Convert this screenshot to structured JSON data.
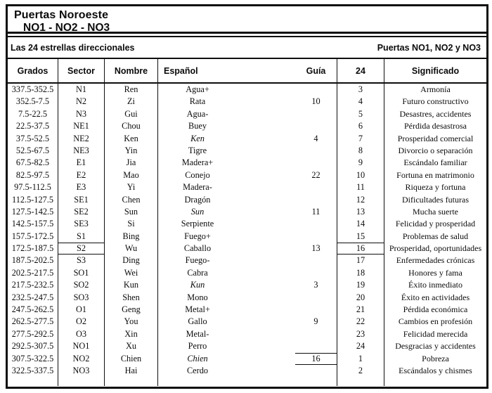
{
  "title": {
    "line1": "Puertas Noroeste",
    "line2": "NO1 - NO2 - NO3"
  },
  "band": {
    "left": "Las 24 estrellas direccionales",
    "right": "Puertas NO1, NO2 y NO3"
  },
  "table": {
    "columns": {
      "grados": "Grados",
      "sector": "Sector",
      "nombre": "Nombre",
      "espanol": "Español",
      "guia": "Guía",
      "n24": "24",
      "significado": "Significado"
    },
    "rows": [
      {
        "grados": "337.5-352.5",
        "sector": "N1",
        "nombre": "Ren",
        "espanol": "Agua+",
        "guia": "",
        "n24": "3",
        "significado": "Armonía"
      },
      {
        "grados": "352.5-7.5",
        "sector": "N2",
        "nombre": "Zi",
        "espanol": "Rata",
        "guia": "10",
        "n24": "4",
        "significado": "Futuro constructivo"
      },
      {
        "grados": "7.5-22.5",
        "sector": "N3",
        "nombre": "Gui",
        "espanol": "Agua-",
        "guia": "",
        "n24": "5",
        "significado": "Desastres, accidentes"
      },
      {
        "grados": "22.5-37.5",
        "sector": "NE1",
        "nombre": "Chou",
        "espanol": "Buey",
        "guia": "",
        "n24": "6",
        "significado": "Pérdida desastrosa"
      },
      {
        "grados": "37.5-52.5",
        "sector": "NE2",
        "nombre": "Ken",
        "espanol": "Ken",
        "espanol_italic": true,
        "guia": "4",
        "n24": "7",
        "significado": "Prosperidad comercial"
      },
      {
        "grados": "52.5-67.5",
        "sector": "NE3",
        "nombre": "Yin",
        "espanol": "Tigre",
        "guia": "",
        "n24": "8",
        "significado": "Divorcio o separación"
      },
      {
        "grados": "67.5-82.5",
        "sector": "E1",
        "nombre": "Jia",
        "espanol": "Madera+",
        "guia": "",
        "n24": "9",
        "significado": "Escándalo familiar"
      },
      {
        "grados": "82.5-97.5",
        "sector": "E2",
        "nombre": "Mao",
        "espanol": "Conejo",
        "guia": "22",
        "n24": "10",
        "significado": "Fortuna en matrimonio"
      },
      {
        "grados": "97.5-112.5",
        "sector": "E3",
        "nombre": "Yi",
        "espanol": "Madera-",
        "guia": "",
        "n24": "11",
        "significado": "Riqueza y fortuna"
      },
      {
        "grados": "112.5-127.5",
        "sector": "SE1",
        "nombre": "Chen",
        "espanol": "Dragón",
        "guia": "",
        "n24": "12",
        "significado": "Dificultades futuras"
      },
      {
        "grados": "127.5-142.5",
        "sector": "SE2",
        "nombre": "Sun",
        "espanol": "Sun",
        "espanol_italic": true,
        "guia": "11",
        "n24": "13",
        "significado": "Mucha suerte"
      },
      {
        "grados": "142.5-157.5",
        "sector": "SE3",
        "nombre": "Si",
        "espanol": "Serpiente",
        "guia": "",
        "n24": "14",
        "significado": "Felicidad y prosperidad"
      },
      {
        "grados": "157.5-172.5",
        "sector": "S1",
        "nombre": "Bing",
        "espanol": "Fuego+",
        "guia": "",
        "n24": "15",
        "significado": "Problemas de salud"
      },
      {
        "grados": "172.5-187.5",
        "sector": "S2",
        "sector_boxed": true,
        "nombre": "Wu",
        "espanol": "Caballo",
        "guia": "13",
        "n24": "16",
        "n24_boxed": true,
        "significado": "Prosperidad, oportunidades"
      },
      {
        "grados": "187.5-202.5",
        "sector": "S3",
        "nombre": "Ding",
        "espanol": "Fuego-",
        "guia": "",
        "n24": "17",
        "significado": "Enfermedades crónicas"
      },
      {
        "grados": "202.5-217.5",
        "sector": "SO1",
        "nombre": "Wei",
        "espanol": "Cabra",
        "guia": "",
        "n24": "18",
        "significado": "Honores y fama"
      },
      {
        "grados": "217.5-232.5",
        "sector": "SO2",
        "nombre": "Kun",
        "espanol": "Kun",
        "espanol_italic": true,
        "guia": "3",
        "n24": "19",
        "significado": "Éxito inmediato"
      },
      {
        "grados": "232.5-247.5",
        "sector": "SO3",
        "nombre": "Shen",
        "espanol": "Mono",
        "guia": "",
        "n24": "20",
        "significado": "Éxito en actividades"
      },
      {
        "grados": "247.5-262.5",
        "sector": "O1",
        "nombre": "Geng",
        "espanol": "Metal+",
        "guia": "",
        "n24": "21",
        "significado": "Pérdida económica"
      },
      {
        "grados": "262.5-277.5",
        "sector": "O2",
        "nombre": "You",
        "espanol": "Gallo",
        "guia": "9",
        "n24": "22",
        "significado": "Cambios en profesión"
      },
      {
        "grados": "277.5-292.5",
        "sector": "O3",
        "nombre": "Xin",
        "espanol": "Metal-",
        "guia": "",
        "n24": "23",
        "significado": "Felicidad merecida"
      },
      {
        "grados": "292.5-307.5",
        "sector": "NO1",
        "nombre": "Xu",
        "espanol": "Perro",
        "guia": "",
        "n24": "24",
        "significado": "Desgracias y accidentes"
      },
      {
        "grados": "307.5-322.5",
        "sector": "NO2",
        "nombre": "Chien",
        "espanol": "Chien",
        "espanol_italic": true,
        "guia": "16",
        "guia_lined": true,
        "n24": "1",
        "significado": "Pobreza"
      },
      {
        "grados": "322.5-337.5",
        "sector": "NO3",
        "nombre": "Hai",
        "espanol": "Cerdo",
        "guia": "",
        "n24": "2",
        "significado": "Escándalos y chismes"
      }
    ]
  },
  "colors": {
    "ink": "#0e0e0e",
    "paper": "#ffffff"
  }
}
